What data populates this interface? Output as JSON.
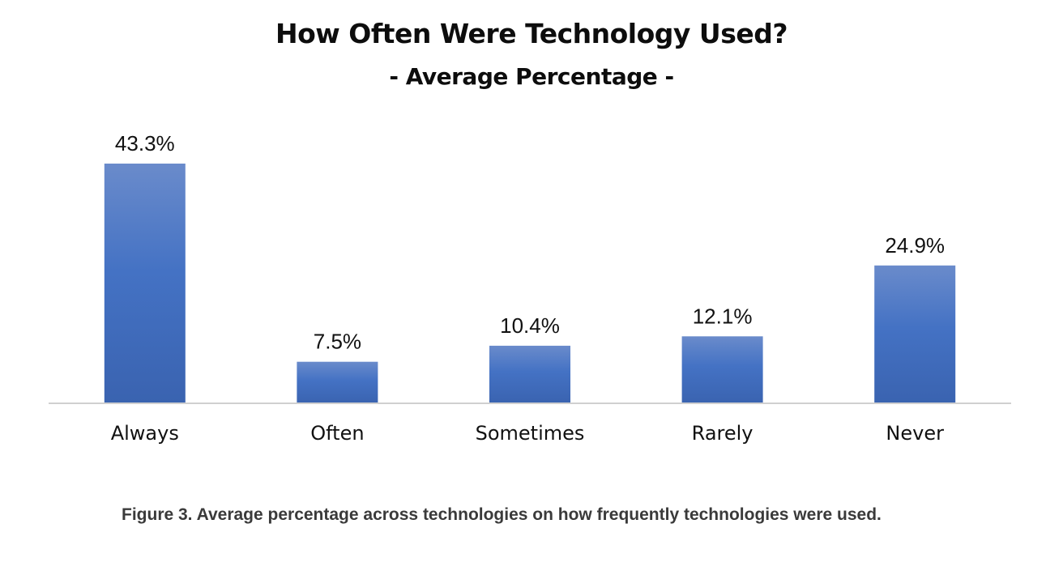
{
  "chart_data": {
    "type": "bar",
    "title": "How Often Were Technology Used?",
    "subtitle": "- Average Percentage -",
    "categories": [
      "Always",
      "Often",
      "Sometimes",
      "Rarely",
      "Never"
    ],
    "values": [
      43.3,
      7.5,
      10.4,
      12.1,
      24.9
    ],
    "value_labels": [
      "43.3%",
      "7.5%",
      "10.4%",
      "12.1%",
      "24.9%"
    ],
    "ylim": [
      0,
      43.3
    ],
    "grid": false,
    "legend": "none",
    "colors": {
      "bar_top": "#6a8bcb",
      "bar_mid": "#4472c4",
      "bar_bottom": "#3a63b0",
      "axis": "#d0d0d0"
    }
  },
  "caption": "Figure 3. Average percentage across technologies on how frequently technologies were used."
}
